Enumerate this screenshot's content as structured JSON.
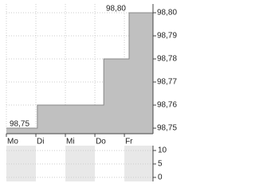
{
  "chart_data": [
    {
      "type": "step-area",
      "color": "#c0c0c0",
      "x": [
        0,
        1.05,
        3.3,
        4.16,
        4.97
      ],
      "series": [
        {
          "values": [
            98.75,
            98.76,
            98.78,
            98.8,
            98.8
          ],
          "value_labels": [
            null,
            null,
            null,
            null,
            null
          ]
        }
      ],
      "xlim": [
        0,
        4.97
      ],
      "xticks": [
        {
          "value": 0,
          "label": "Mo"
        },
        {
          "value": 1,
          "label": "Di"
        },
        {
          "value": 2,
          "label": "Mi"
        },
        {
          "value": 3,
          "label": "Do"
        },
        {
          "value": 4,
          "label": "Fr"
        }
      ],
      "ylim": [
        98.7476,
        98.8038
      ],
      "yticks": [
        {
          "value": 98.75,
          "label": "98,75"
        },
        {
          "value": 98.76,
          "label": "98,76"
        },
        {
          "value": 98.77,
          "label": "98,77"
        },
        {
          "value": 98.78,
          "label": "98,78"
        },
        {
          "value": 98.79,
          "label": "98,79"
        },
        {
          "value": 98.8,
          "label": "98,80"
        }
      ],
      "annotations": [
        {
          "label": "98,75",
          "x": 0,
          "y": 98.75
        },
        {
          "label": "98,80",
          "x": 4.16,
          "y": 98.8
        }
      ],
      "grid": true
    },
    {
      "type": "volume",
      "ylim": [
        -1.5,
        11.8
      ],
      "yticks": [
        0,
        5,
        10
      ],
      "grid": true
    }
  ]
}
